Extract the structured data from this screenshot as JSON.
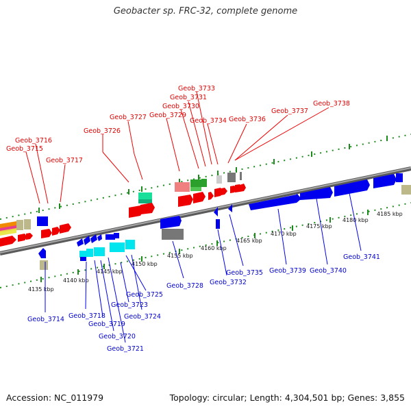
{
  "title": "Geobacter sp. FRC-32, complete genome",
  "footer": {
    "accession": "Accession: NC_011979",
    "topology": "Topology: circular; Length: 4,304,501 bp; Genes: 3,855"
  },
  "colors": {
    "label_top": "#dd0000",
    "label_bottom": "#0000cc",
    "tick": "#1a8a1a",
    "backbone": "#8a8a8a"
  },
  "scale_labels": [
    "4135 kbp",
    "4140 kbp",
    "4145 kbp",
    "4150 kbp",
    "4155 kbp",
    "4160 kbp",
    "4165 kbp",
    "4170 kbp",
    "4175 kbp",
    "4180 kbp",
    "4185 kbp"
  ],
  "top_labels": [
    "Geob_3716",
    "Geob_3715",
    "Geob_3717",
    "Geob_3726",
    "Geob_3727",
    "Geob_3729",
    "Geob_3730",
    "Geob_3731",
    "Geob_3733",
    "Geob_3734",
    "Geob_3736",
    "Geob_3737",
    "Geob_3738"
  ],
  "bottom_labels": [
    "Geob_3714",
    "Geob_3718",
    "Geob_3719",
    "Geob_3720",
    "Geob_3721",
    "Geob_3723",
    "Geob_3724",
    "Geob_3725",
    "Geob_3728",
    "Geob_3732",
    "Geob_3735",
    "Geob_3739",
    "Geob_3740",
    "Geob_3741"
  ]
}
